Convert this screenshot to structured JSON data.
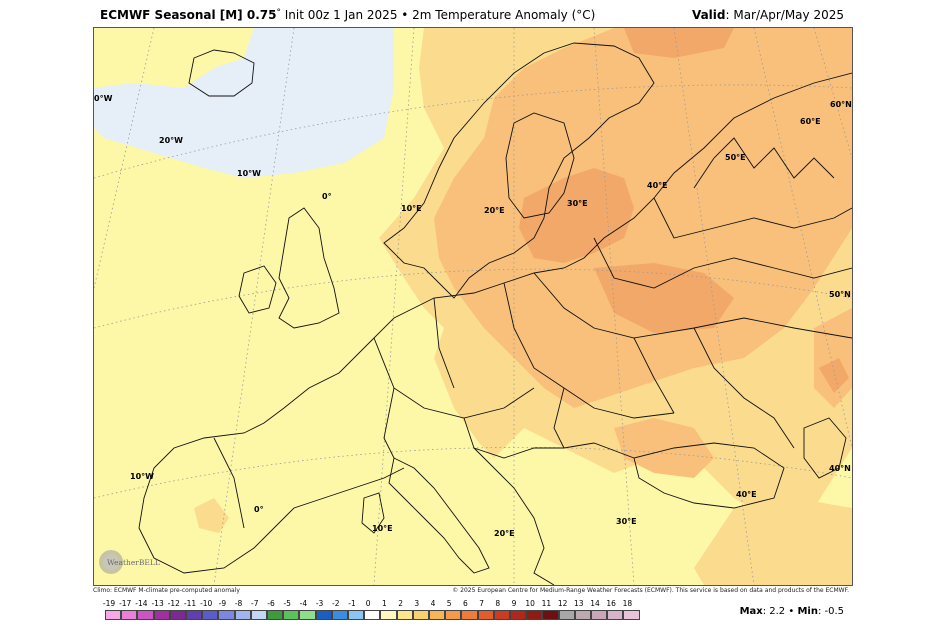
{
  "header": {
    "model_bold": "ECMWF Seasonal [M] 0.75",
    "degree": "°",
    "subtitle": " Init 00z 1 Jan 2025 • 2m Temperature Anomaly (°C)",
    "valid_label": "Valid",
    "valid_value": ": Mar/Apr/May 2025"
  },
  "grid_labels": {
    "lon_30w": "0°W",
    "lon_20w": "20°W",
    "lon_10w": "10°W",
    "lon_0": "0°",
    "lon_10e": "10°E",
    "lon_20e": "20°E",
    "lon_30e": "30°E",
    "lon_40e": "40°E",
    "lon_50e": "50°E",
    "lat_60n_top": "60°N",
    "lon_60e": "60°E",
    "lat_50n": "50°N",
    "lat_40n": "40°N",
    "lower_10w": "10°W",
    "lower_0": "0°",
    "lower_10e": "10°E",
    "lower_20e": "20°E",
    "lower_30e": "30°E",
    "lower_40e": "40°E"
  },
  "credits": {
    "left": "Climo: ECMWF M-climate pre-computed anomaly",
    "right": "© 2025 European Centre for Medium-Range Weather Forecasts (ECMWF). This service is based on data and products of the ECMWF."
  },
  "logo_text": "WeatherBELL",
  "colorbar": {
    "ticks": [
      "-19",
      "-17",
      "-14",
      "-13",
      "-12",
      "-11",
      "-10",
      "-9",
      "-8",
      "-7",
      "-6",
      "-5",
      "-4",
      "-3",
      "-2",
      "-1",
      "0",
      "1",
      "2",
      "3",
      "4",
      "5",
      "6",
      "7",
      "8",
      "9",
      "10",
      "11",
      "12",
      "13",
      "14",
      "16",
      "18"
    ],
    "colors": [
      "#f7a8e8",
      "#e880d8",
      "#cc55c4",
      "#a0309e",
      "#7a2a90",
      "#6040b0",
      "#5a5ccc",
      "#7c88e0",
      "#a0b4f0",
      "#c2d6f6",
      "#3d9a3d",
      "#5cc05c",
      "#8ede8e",
      "#1a5ec4",
      "#3c8ce0",
      "#8cc4f4",
      "#ffffff",
      "#fff9c0",
      "#fde68c",
      "#fbd070",
      "#f8b458",
      "#f59a48",
      "#f07c3c",
      "#e45c2e",
      "#cc3c22",
      "#b0281a",
      "#8c1c14",
      "#6c1010",
      "#a8a8a8",
      "#bcaab0",
      "#c8a8b8",
      "#d8b4c8",
      "#e8c4d8"
    ]
  },
  "stats": {
    "max_label": "Max",
    "max_value": ": 2.2",
    "sep": " • ",
    "min_label": "Min",
    "min_value": ": -0.5"
  },
  "anomaly_colors": {
    "cool": "#e6eef8",
    "neutral": "#fdf7a8",
    "warm1": "#fbdc8e",
    "warm2": "#f8c07a",
    "warm3": "#f2a868"
  }
}
